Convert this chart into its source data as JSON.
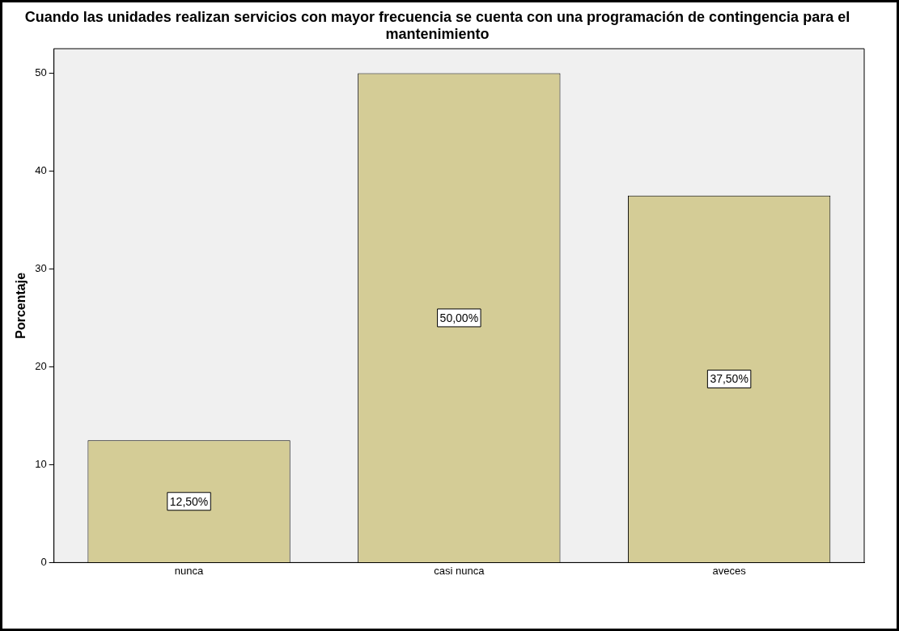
{
  "chart_data": {
    "type": "bar",
    "title": "Cuando las unidades realizan servicios con mayor frecuencia se cuenta con una programación de contingencia para el mantenimiento",
    "ylabel": "Porcentaje",
    "categories": [
      "nunca",
      "casi nunca",
      "aveces"
    ],
    "values": [
      12.5,
      50,
      37.5
    ],
    "color": "#d4cc96",
    "value_labels": [
      "12,50%",
      "50,00%",
      "37,50%"
    ],
    "ylim": [
      0,
      52.5
    ],
    "yticks": [
      0,
      10,
      20,
      30,
      40,
      50
    ],
    "grid": false,
    "legend": false
  }
}
